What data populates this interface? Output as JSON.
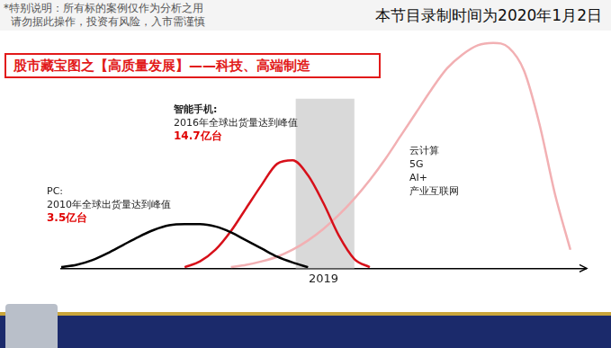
{
  "header": {
    "disclaimer": [
      "*特别说明：所有标的案例仅作为分析之用",
      "请勿据此操作，投资有风险，入市需谨慎"
    ],
    "recording_note": "本节目录制时间为2020年1月2日"
  },
  "chart_data": {
    "type": "line",
    "title": "股市藏宝图之【高质量发展】——科技、高端制造",
    "x": [
      2002,
      2003,
      2004,
      2005,
      2006,
      2007,
      2008,
      2009,
      2010,
      2011,
      2012,
      2013,
      2014,
      2015,
      2016,
      2017,
      2018,
      2019,
      2020,
      2021,
      2022,
      2023,
      2024,
      2025,
      2026,
      2027,
      2028,
      2029,
      2030,
      2031,
      2032,
      2033,
      2034,
      2035,
      2036
    ],
    "series": [
      {
        "color": "#000000",
        "values": [
          0.5,
          1.5,
          3.5,
          6.5,
          10,
          13.5,
          16.5,
          18.5,
          19,
          19,
          18,
          15.5,
          12,
          8.5,
          5,
          2.5,
          0.5,
          null,
          null,
          null,
          null,
          null,
          null,
          null,
          null,
          null,
          null,
          null,
          null,
          null,
          null,
          null,
          null,
          null,
          null
        ]
      },
      {
        "color": "#d7101a",
        "values": [
          null,
          null,
          null,
          null,
          null,
          null,
          null,
          null,
          0.5,
          3,
          8,
          16,
          26,
          36,
          45,
          46.5,
          40,
          28,
          14,
          4,
          0.5,
          null,
          null,
          null,
          null,
          null,
          null,
          null,
          null,
          null,
          null,
          null,
          null,
          null,
          null
        ]
      },
      {
        "color": "#f2b0b3",
        "values": [
          null,
          null,
          null,
          null,
          null,
          null,
          null,
          null,
          null,
          null,
          null,
          0.5,
          1.5,
          3,
          5,
          8,
          12,
          17,
          23,
          30,
          38,
          47,
          57,
          67,
          77,
          86,
          92,
          96,
          97,
          95,
          85,
          62,
          32,
          8,
          null
        ]
      }
    ],
    "xlim": [
      2002,
      2036
    ],
    "xticks": [
      2019
    ],
    "ylim": [
      0,
      100
    ],
    "tick_labels": "x",
    "grid": false,
    "highlight": [
      2017.2,
      2021
    ],
    "annotations": [
      {
        "lines": [
          {
            "text": "PC:"
          },
          {
            "text": "2010年全球出货量达到峰值"
          },
          {
            "text": "3.5亿台",
            "color": "#e00000"
          }
        ]
      },
      {
        "lines": [
          {
            "text": "智能手机:"
          },
          {
            "text": "2016年全球出货量达到峰值"
          },
          {
            "text": "14.7亿台",
            "color": "#e00000"
          }
        ]
      },
      {
        "lines": [
          {
            "text": "云计算"
          },
          {
            "text": "5G"
          },
          {
            "text": "AI+"
          },
          {
            "text": "产业互联网"
          }
        ]
      }
    ]
  }
}
